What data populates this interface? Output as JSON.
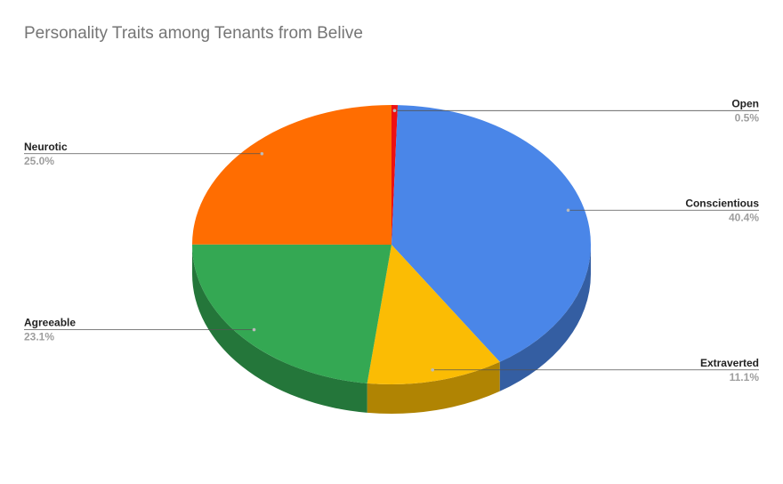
{
  "chart_data": {
    "type": "pie",
    "style": "3d",
    "title": "Personality Traits among Tenants from Belive",
    "slices": [
      {
        "label": "Open",
        "value": 0.5,
        "pct_label": "0.5%",
        "color": "#ee1111"
      },
      {
        "label": "Conscientious",
        "value": 40.4,
        "pct_label": "40.4%",
        "color": "#4a86e8"
      },
      {
        "label": "Extraverted",
        "value": 11.1,
        "pct_label": "11.1%",
        "color": "#fbbc04"
      },
      {
        "label": "Agreeable",
        "value": 23.1,
        "pct_label": "23.1%",
        "color": "#34a853"
      },
      {
        "label": "Neurotic",
        "value": 25.0,
        "pct_label": "25.0%",
        "color": "#ff6d01"
      }
    ],
    "legend": "none"
  }
}
